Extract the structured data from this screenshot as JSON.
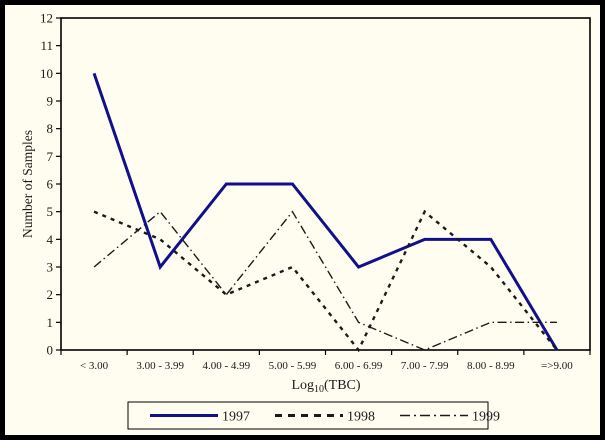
{
  "figure": {
    "background": "#fffdf0",
    "frame_color": "#000000",
    "axis_color": "#000000",
    "text_color": "#1a1a1a"
  },
  "chart_data": {
    "type": "line",
    "title": "",
    "xlabel": "Log10(TBC)",
    "xlabel_parts": {
      "pre": "Log",
      "sub": "10",
      "post": "(TBC)"
    },
    "ylabel": "Number of Samples",
    "ylim": [
      0,
      12
    ],
    "ytick_step": 1,
    "grid": false,
    "legend_position": "bottom-boxed",
    "categories": [
      "< 3.00",
      "3.00 - 3.99",
      "4.00 - 4.99",
      "5.00 - 5.99",
      "6.00 - 6.99",
      "7.00 - 7.99",
      "8.00 - 8.99",
      "=>9.00"
    ],
    "series": [
      {
        "name": "1997",
        "style": "solid",
        "color": "#10108c",
        "width": 3,
        "values": [
          10,
          3,
          6,
          6,
          3,
          4,
          4,
          0
        ]
      },
      {
        "name": "1998",
        "style": "dashed",
        "color": "#1a1a1a",
        "width": 2.4,
        "values": [
          5,
          4,
          2,
          3,
          0,
          5,
          3,
          0
        ]
      },
      {
        "name": "1999",
        "style": "dashdot",
        "color": "#1a1a1a",
        "width": 1.4,
        "values": [
          3,
          5,
          2,
          5,
          1,
          0,
          1,
          1
        ]
      }
    ]
  }
}
